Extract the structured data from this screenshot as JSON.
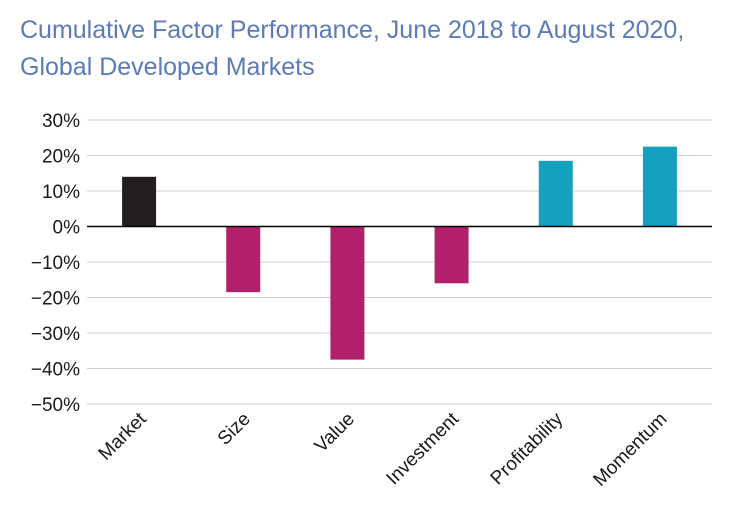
{
  "chart_data": {
    "type": "bar",
    "title": "Cumulative Factor Performance, June 2018 to August 2020, Global Developed Markets",
    "xlabel": "",
    "ylabel": "",
    "ylim": [
      -50,
      30
    ],
    "yticks": [
      30,
      20,
      10,
      0,
      -10,
      -20,
      -30,
      -40,
      -50
    ],
    "ytick_labels": [
      "30%",
      "20%",
      "10%",
      "0%",
      "−10%",
      "−20%",
      "−30%",
      "−40%",
      "−50%"
    ],
    "grid": true,
    "categories": [
      "Market",
      "Size",
      "Value",
      "Investment",
      "Profitability",
      "Momentum"
    ],
    "values": [
      14,
      -18.5,
      -37.5,
      -16,
      18.5,
      22.5
    ],
    "colors": [
      "#231f20",
      "#b21f6a",
      "#b21f6a",
      "#b21f6a",
      "#16a0bf",
      "#16a0bf"
    ]
  }
}
